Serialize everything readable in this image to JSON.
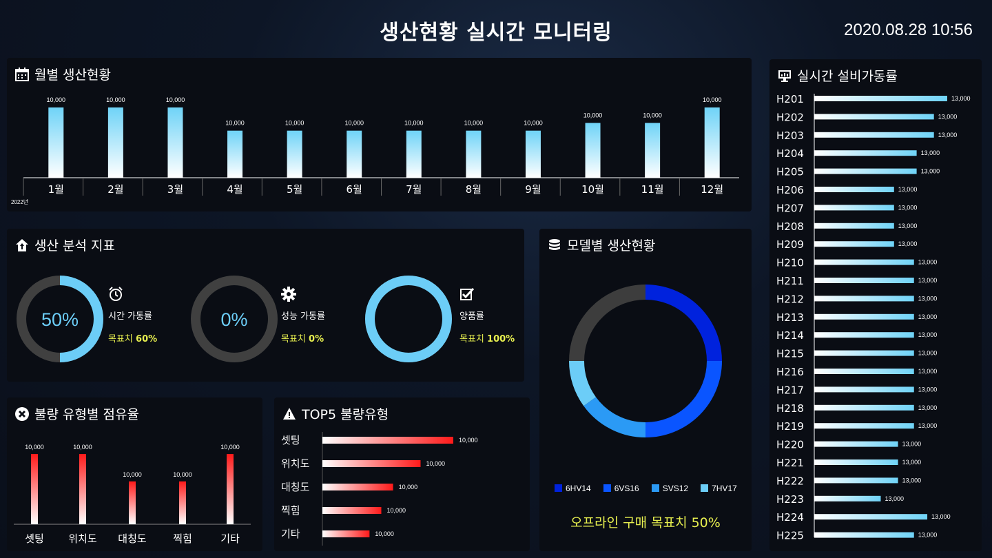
{
  "header": {
    "title": "생산현황 실시간 모니터링",
    "clock": "2020.08.28  10:56"
  },
  "monthly": {
    "title": "월별 생산현황",
    "year_label": "2022년",
    "chart_data": {
      "type": "bar",
      "categories": [
        "1월",
        "2월",
        "3월",
        "4월",
        "5월",
        "6월",
        "7월",
        "8월",
        "9월",
        "10월",
        "11월",
        "12월"
      ],
      "values": [
        10000,
        10000,
        10000,
        10000,
        10000,
        10000,
        10000,
        10000,
        10000,
        10000,
        10000,
        10000
      ],
      "bar_level": [
        100,
        100,
        100,
        67,
        67,
        67,
        67,
        67,
        67,
        78,
        78,
        100
      ],
      "value_labels": [
        "10,000",
        "10,000",
        "10,000",
        "10,000",
        "10,000",
        "10,000",
        "10,000",
        "10,000",
        "10,000",
        "10,000",
        "10,000",
        "10,000"
      ]
    }
  },
  "analysis": {
    "title": "생산 분석 지표",
    "gauges": [
      {
        "value_text": "50%",
        "fraction": 0.5,
        "label": "시간 가동률",
        "target_label": "목표치",
        "target_value": "60%",
        "icon": "alarm-clock-icon"
      },
      {
        "value_text": "0%",
        "fraction": 0.0,
        "label": "성능 가동률",
        "target_label": "목표치",
        "target_value": "0%",
        "icon": "gear-icon"
      },
      {
        "value_text": "",
        "fraction": 1.0,
        "label": "양품률",
        "target_label": "목표치",
        "target_value": "100%",
        "icon": "checkbox-icon"
      }
    ]
  },
  "defect_share": {
    "title": "불량 유형별 점유율",
    "chart_data": {
      "type": "bar",
      "categories": [
        "셋팅",
        "위치도",
        "대칭도",
        "찍힘",
        "기타"
      ],
      "values": [
        10000,
        10000,
        10000,
        10000,
        10000
      ],
      "bar_level": [
        100,
        100,
        61,
        61,
        100
      ],
      "value_labels": [
        "10,000",
        "10,000",
        "10,000",
        "10,000",
        "10,000"
      ]
    }
  },
  "top5": {
    "title": "TOP5 불량유형",
    "chart_data": {
      "type": "bar",
      "categories": [
        "셋팅",
        "위치도",
        "대칭도",
        "찍힘",
        "기타"
      ],
      "values": [
        10000,
        10000,
        10000,
        10000,
        10000
      ],
      "bar_level": [
        100,
        75,
        54,
        45,
        36
      ],
      "value_labels": [
        "10,000",
        "10,000",
        "10,000",
        "10,000",
        "10,000"
      ]
    }
  },
  "model": {
    "title": "모델별 생산현황",
    "chart_data": {
      "type": "pie",
      "categories": [
        "6HV14",
        "6VS16",
        "SVS12",
        "7HV17"
      ],
      "values": [
        25,
        25,
        15,
        10
      ],
      "remainder": 25,
      "colors": [
        "#0022dd",
        "#0a55ff",
        "#2b9af5",
        "#6ccdf7"
      ],
      "remainder_color": "#3d3d3d"
    },
    "offline_text": "오프라인 구매 목표치  50%"
  },
  "equipment": {
    "title": "실시간 설비가동률",
    "chart_data": {
      "type": "bar",
      "categories": [
        "H201",
        "H202",
        "H203",
        "H204",
        "H205",
        "H206",
        "H207",
        "H208",
        "H209",
        "H210",
        "H211",
        "H212",
        "H213",
        "H214",
        "H215",
        "H216",
        "H217",
        "H218",
        "H219",
        "H220",
        "H221",
        "H222",
        "H223",
        "H224",
        "H225"
      ],
      "values": [
        13000,
        13000,
        13000,
        13000,
        13000,
        13000,
        13000,
        13000,
        13000,
        13000,
        13000,
        13000,
        13000,
        13000,
        13000,
        13000,
        13000,
        13000,
        13000,
        13000,
        13000,
        13000,
        13000,
        13000,
        13000
      ],
      "bar_level": [
        100,
        90,
        90,
        77,
        77,
        60,
        60,
        60,
        60,
        75,
        75,
        75,
        75,
        75,
        75,
        75,
        75,
        75,
        75,
        63,
        63,
        63,
        50,
        85,
        75
      ],
      "value_labels": [
        "13,000",
        "13,000",
        "13,000",
        "13,000",
        "13,000",
        "13,000",
        "13,000",
        "13,000",
        "13,000",
        "13,000",
        "13,000",
        "13,000",
        "13,000",
        "13,000",
        "13,000",
        "13,000",
        "13,000",
        "13,000",
        "13,000",
        "13,000",
        "13,000",
        "13,000",
        "13,000",
        "13,000",
        "13,000"
      ]
    }
  }
}
